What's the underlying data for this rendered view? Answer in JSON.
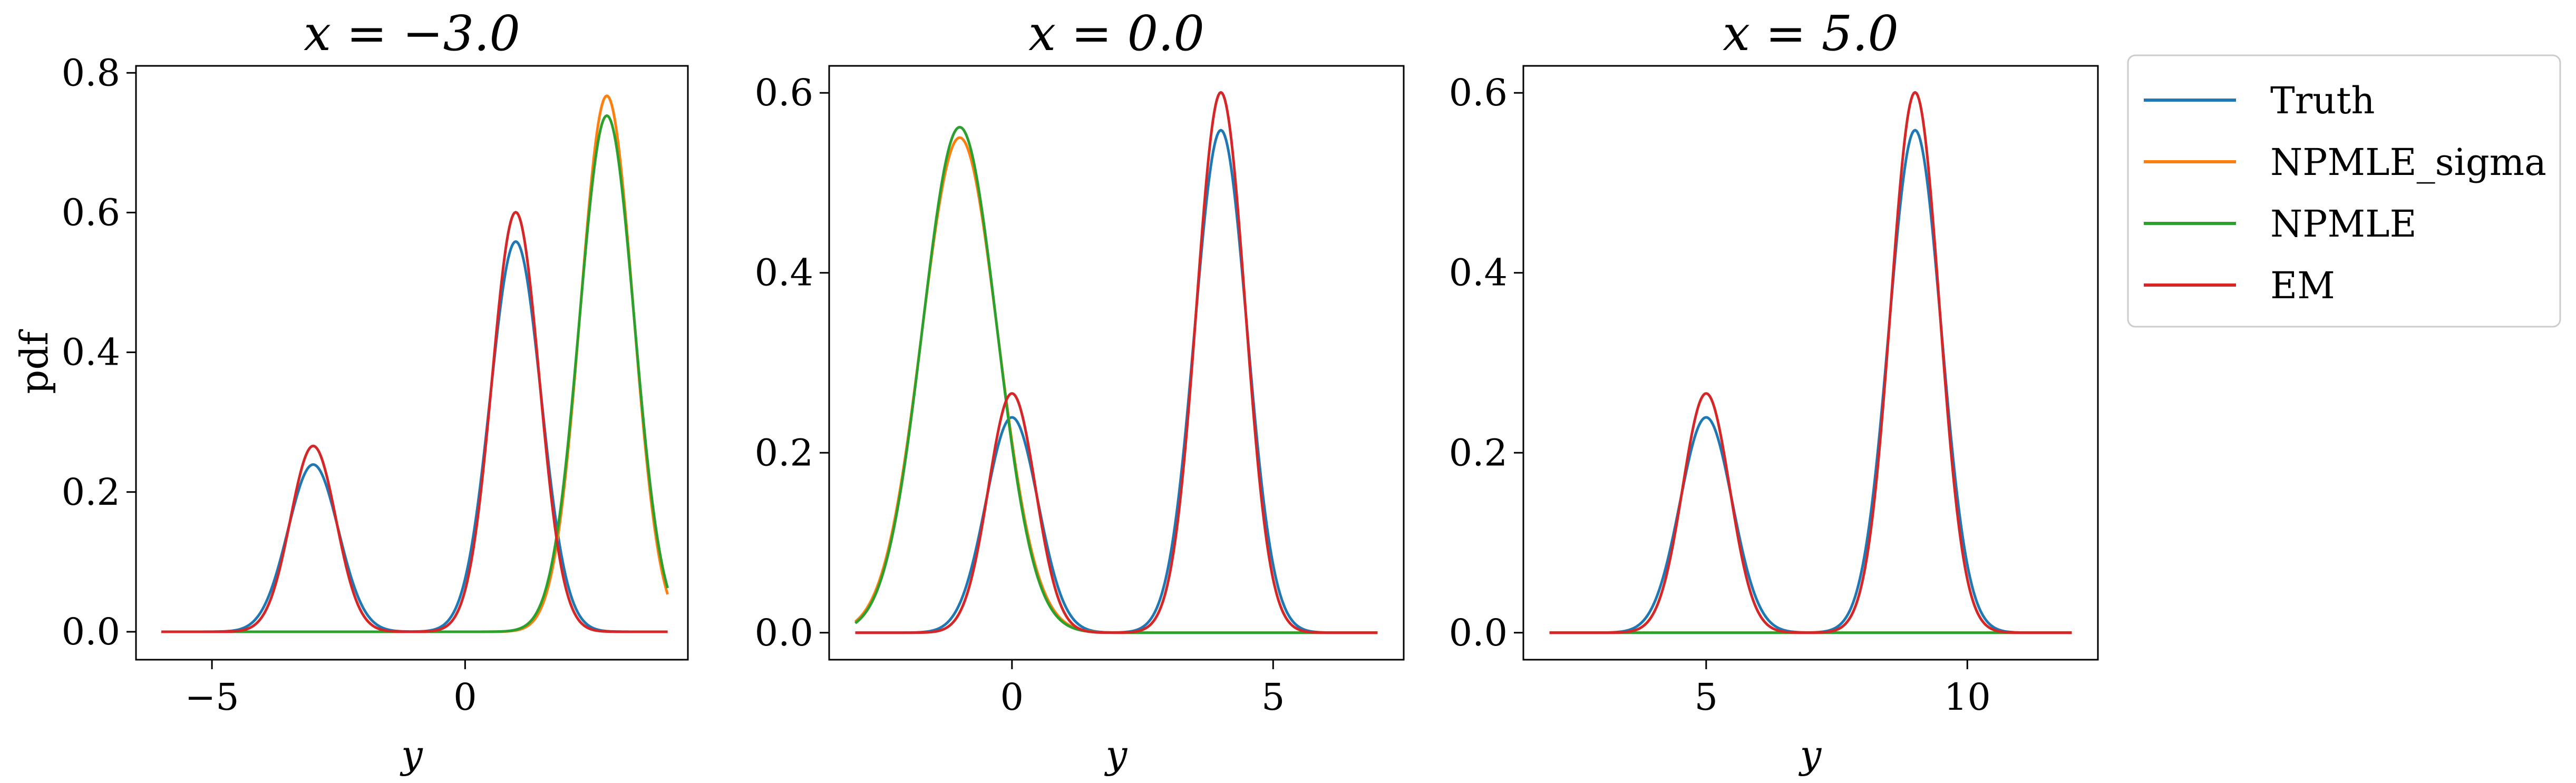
{
  "chart_data": [
    {
      "type": "line",
      "title": "x = −3.0",
      "xlabel": "y",
      "ylabel": "pdf",
      "xlim": [
        -6.5,
        4.4
      ],
      "ylim": [
        -0.04,
        0.81
      ],
      "xticks": [
        -5,
        0
      ],
      "xtick_labels": [
        "−5",
        "0"
      ],
      "yticks": [
        0.0,
        0.2,
        0.4,
        0.6,
        0.8
      ],
      "ytick_labels": [
        "0.0",
        "0.2",
        "0.4",
        "0.6",
        "0.8"
      ],
      "x_range": [
        -6,
        4
      ],
      "grid": false,
      "series": [
        {
          "name": "Truth",
          "color": "#1f77b4",
          "components": [
            {
              "w": 0.3,
              "mu": -3,
              "s": 0.5
            },
            {
              "w": 0.7,
              "mu": 1,
              "s": 0.5
            }
          ]
        },
        {
          "name": "NPMLE_sigma",
          "color": "#ff7f0e",
          "components": [
            {
              "w": 1.0,
              "mu": 2.8,
              "s": 0.52
            }
          ]
        },
        {
          "name": "NPMLE",
          "color": "#2ca02c",
          "components": [
            {
              "w": 1.0,
              "mu": 2.8,
              "s": 0.54
            }
          ]
        },
        {
          "name": "EM",
          "color": "#d62728",
          "components": [
            {
              "w": 0.3,
              "mu": -3,
              "s": 0.45
            },
            {
              "w": 0.7,
              "mu": 1,
              "s": 0.465
            }
          ]
        }
      ]
    },
    {
      "type": "line",
      "title": "x = 0.0",
      "xlabel": "y",
      "ylabel": "",
      "xlim": [
        -3.5,
        7.5
      ],
      "ylim": [
        -0.03,
        0.63
      ],
      "xticks": [
        0,
        5
      ],
      "xtick_labels": [
        "0",
        "5"
      ],
      "yticks": [
        0.0,
        0.2,
        0.4,
        0.6
      ],
      "ytick_labels": [
        "0.0",
        "0.2",
        "0.4",
        "0.6"
      ],
      "x_range": [
        -3,
        7
      ],
      "grid": false,
      "series": [
        {
          "name": "Truth",
          "color": "#1f77b4",
          "components": [
            {
              "w": 0.3,
              "mu": 0,
              "s": 0.5
            },
            {
              "w": 0.7,
              "mu": 4,
              "s": 0.5
            }
          ]
        },
        {
          "name": "NPMLE_sigma",
          "color": "#ff7f0e",
          "components": [
            {
              "w": 1.0,
              "mu": -1,
              "s": 0.725
            }
          ]
        },
        {
          "name": "NPMLE",
          "color": "#2ca02c",
          "components": [
            {
              "w": 1.0,
              "mu": -1,
              "s": 0.71
            }
          ]
        },
        {
          "name": "EM",
          "color": "#d62728",
          "components": [
            {
              "w": 0.3,
              "mu": 0,
              "s": 0.45
            },
            {
              "w": 0.7,
              "mu": 4,
              "s": 0.465
            }
          ]
        }
      ]
    },
    {
      "type": "line",
      "title": "x = 5.0",
      "xlabel": "y",
      "ylabel": "",
      "xlim": [
        1.5,
        12.5
      ],
      "ylim": [
        -0.03,
        0.63
      ],
      "xticks": [
        5,
        10
      ],
      "xtick_labels": [
        "5",
        "10"
      ],
      "yticks": [
        0.0,
        0.2,
        0.4,
        0.6
      ],
      "ytick_labels": [
        "0.0",
        "0.2",
        "0.4",
        "0.6"
      ],
      "x_range": [
        2,
        12
      ],
      "grid": false,
      "series": [
        {
          "name": "Truth",
          "color": "#1f77b4",
          "components": [
            {
              "w": 0.3,
              "mu": 5,
              "s": 0.5
            },
            {
              "w": 0.7,
              "mu": 9,
              "s": 0.5
            }
          ]
        },
        {
          "name": "NPMLE_sigma",
          "color": "#ff7f0e",
          "components": [
            {
              "w": 0.0,
              "mu": 7,
              "s": 1
            }
          ]
        },
        {
          "name": "NPMLE",
          "color": "#2ca02c",
          "components": [
            {
              "w": 0.0,
              "mu": 7,
              "s": 1
            }
          ]
        },
        {
          "name": "EM",
          "color": "#d62728",
          "components": [
            {
              "w": 0.3,
              "mu": 5,
              "s": 0.45
            },
            {
              "w": 0.7,
              "mu": 9,
              "s": 0.465
            }
          ]
        }
      ]
    }
  ],
  "legend": {
    "placement": "right",
    "entries": [
      {
        "label": "Truth",
        "color": "#1f77b4"
      },
      {
        "label": "NPMLE_sigma",
        "color": "#ff7f0e"
      },
      {
        "label": "NPMLE",
        "color": "#2ca02c"
      },
      {
        "label": "EM",
        "color": "#d62728"
      }
    ]
  }
}
